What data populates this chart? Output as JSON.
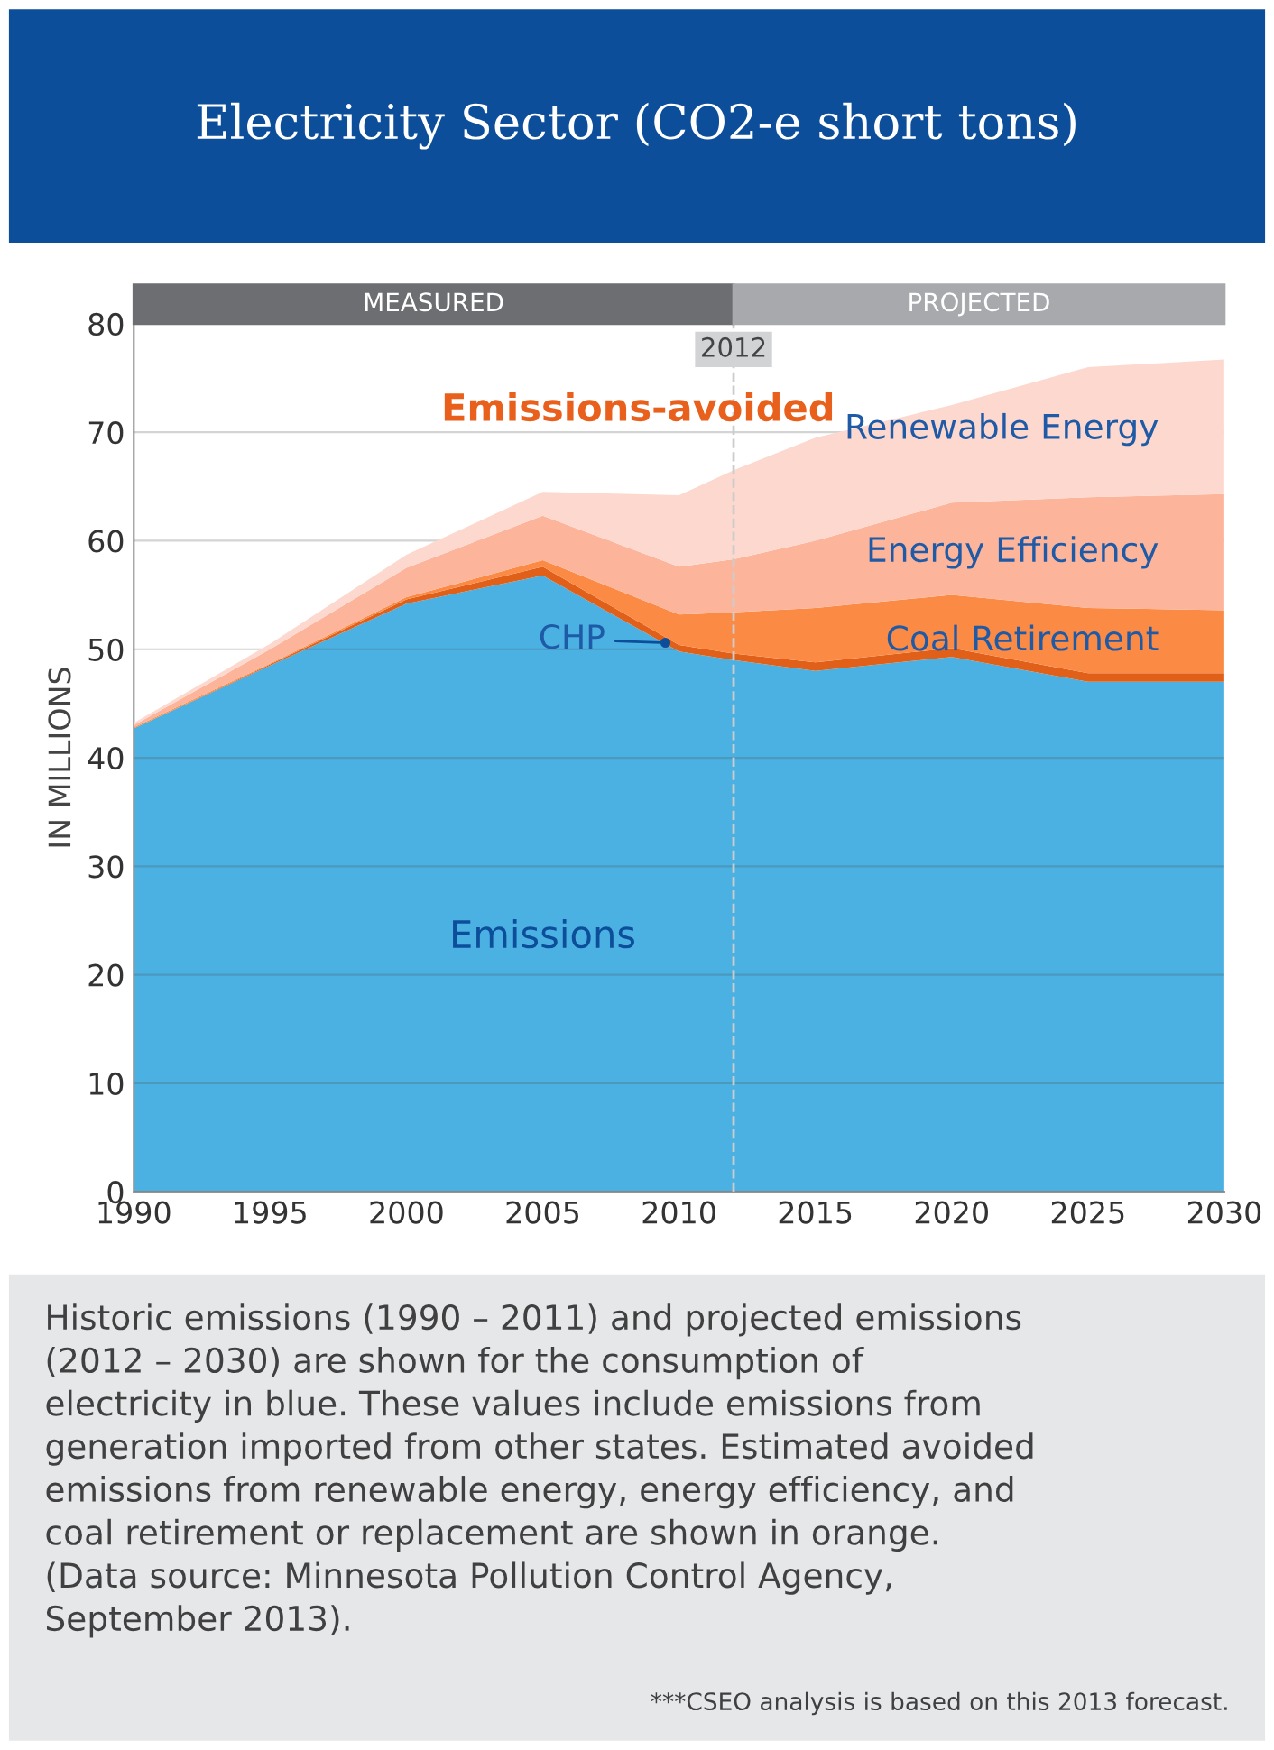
{
  "chart_data": {
    "type": "area",
    "stacked": true,
    "title": "Electricity Sector (CO2-e short tons)",
    "ylabel": "IN MILLIONS",
    "x": [
      1990,
      1995,
      2000,
      2005,
      2010,
      2012,
      2015,
      2020,
      2025,
      2030
    ],
    "series": [
      {
        "name": "Emissions",
        "color": "#4ab1e2",
        "values": [
          42.7,
          48.5,
          54.2,
          56.8,
          49.8,
          49.0,
          48.0,
          49.3,
          47.0,
          47.0
        ]
      },
      {
        "name": "CHP",
        "color": "#e0601a",
        "values": [
          0,
          0.1,
          0.4,
          0.8,
          0.6,
          0.6,
          0.8,
          0.8,
          0.8,
          0.8
        ]
      },
      {
        "name": "Coal Retirement",
        "color": "#fb8a45",
        "values": [
          0.1,
          0.1,
          0.2,
          0.6,
          2.8,
          3.8,
          5.0,
          4.9,
          6.0,
          5.8
        ]
      },
      {
        "name": "Energy Efficiency",
        "color": "#fcb49a",
        "values": [
          0.2,
          1.3,
          2.7,
          4.1,
          4.4,
          4.9,
          6.2,
          8.5,
          10.2,
          10.7
        ]
      },
      {
        "name": "Renewable Energy",
        "color": "#fdd8cf",
        "values": [
          0.2,
          0.5,
          1.2,
          2.2,
          6.6,
          8.2,
          9.5,
          9.0,
          12.0,
          12.4
        ]
      }
    ],
    "xlim": [
      1990,
      2030
    ],
    "xticks": [
      1990,
      1995,
      2000,
      2005,
      2010,
      2015,
      2020,
      2025,
      2030
    ],
    "ylim": [
      0,
      80
    ],
    "yticks": [
      0,
      10,
      20,
      30,
      40,
      50,
      60,
      70,
      80
    ],
    "grid": "y",
    "legend": false,
    "ref_lines": [
      {
        "axis": "x",
        "value": 2012,
        "label": "2012",
        "line_style": "dashed",
        "color": "#cccccc"
      }
    ],
    "annotations": [
      "Emissions-avoided",
      "Historic emissions (1990 – 2011) and projected emissions\n(2012 – 2030) are shown for the consumption of\nelectricity in blue. These values include emissions from\ngeneration imported from other states. Estimated avoided\nemissions from renewable energy, energy efficiency, and\ncoal retirement or replacement are shown in orange.\n(Data source: Minnesota Pollution Control Agency,\nSeptember 2013).",
      "***CSEO analysis is based on this 2013 forecast.",
      "MEASURED",
      "PROJECTED"
    ]
  }
}
